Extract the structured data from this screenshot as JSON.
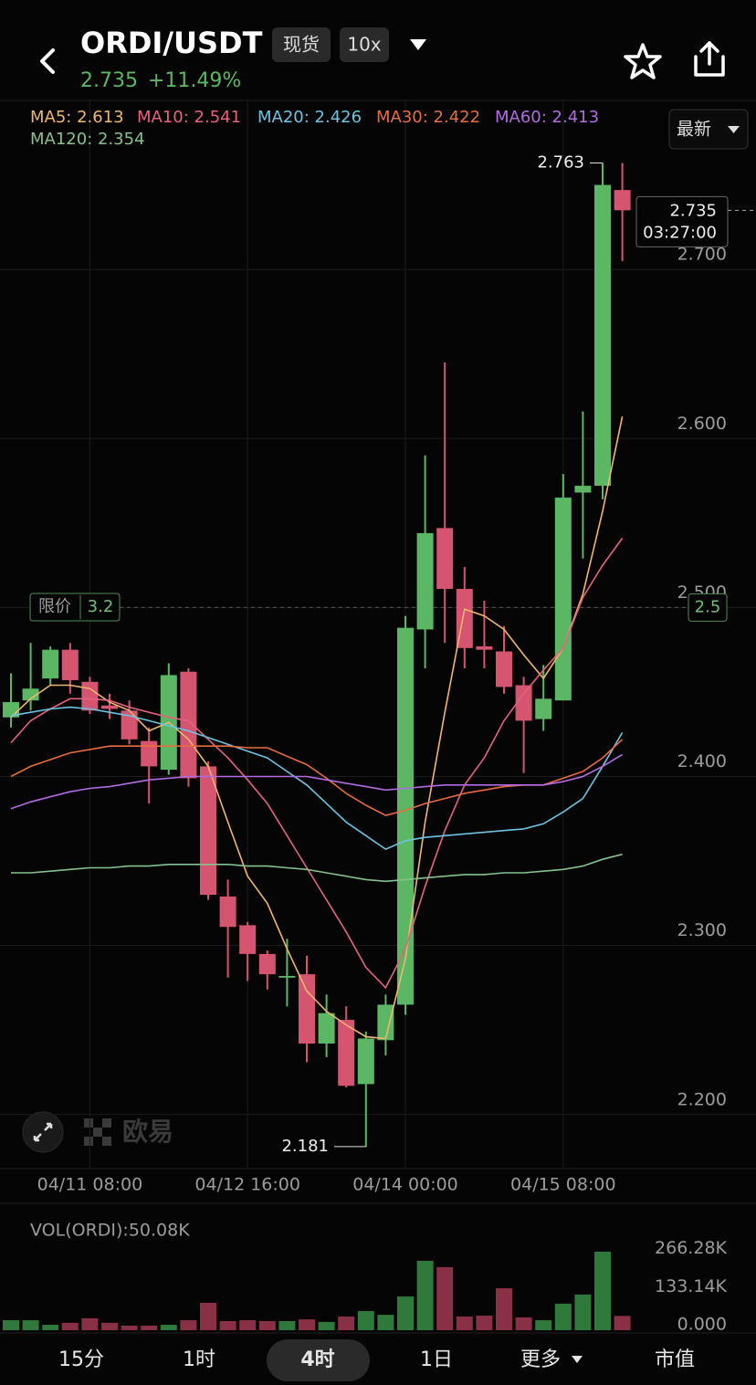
{
  "header": {
    "pair": "ORDI/USDT",
    "market": "现货",
    "leverage": "10x",
    "price": "2.735",
    "change": "+11.49%"
  },
  "price_mode": "最新",
  "watermark": "欧易",
  "chart_data": [
    {
      "type": "candlestick",
      "categories": [
        null,
        null,
        null,
        null,
        "04/11 08:00",
        null,
        null,
        null,
        null,
        null,
        null,
        null,
        "04/12 16:00",
        null,
        null,
        null,
        null,
        null,
        null,
        null,
        "04/14 00:00",
        null,
        null,
        null,
        null,
        null,
        null,
        null,
        "04/15 08:00",
        null,
        null,
        null
      ],
      "open": [
        2.435,
        2.445,
        2.458,
        2.475,
        2.456,
        2.442,
        2.439,
        2.421,
        2.404,
        2.462,
        2.406,
        2.329,
        2.312,
        2.295,
        2.281,
        2.283,
        2.242,
        2.256,
        2.218,
        2.244,
        2.265,
        2.487,
        2.547,
        2.511,
        2.477,
        2.474,
        2.454,
        2.434,
        2.445,
        2.568,
        2.572,
        2.747
      ],
      "high": [
        2.461,
        2.479,
        2.477,
        2.479,
        2.459,
        2.449,
        2.445,
        2.429,
        2.467,
        2.464,
        2.409,
        2.339,
        2.314,
        2.297,
        2.304,
        2.294,
        2.271,
        2.264,
        2.249,
        2.271,
        2.495,
        2.59,
        2.645,
        2.524,
        2.504,
        2.489,
        2.459,
        2.466,
        2.579,
        2.616,
        2.763,
        2.763
      ],
      "low": [
        2.429,
        2.439,
        2.454,
        2.449,
        2.437,
        2.434,
        2.419,
        2.384,
        2.401,
        2.394,
        2.327,
        2.281,
        2.279,
        2.274,
        2.264,
        2.231,
        2.234,
        2.216,
        2.181,
        2.235,
        2.259,
        2.464,
        2.479,
        2.464,
        2.464,
        2.449,
        2.402,
        2.427,
        2.445,
        2.529,
        2.564,
        2.705
      ],
      "close": [
        2.444,
        2.452,
        2.475,
        2.457,
        2.439,
        2.44,
        2.422,
        2.406,
        2.46,
        2.399,
        2.33,
        2.311,
        2.295,
        2.283,
        2.282,
        2.242,
        2.26,
        2.217,
        2.245,
        2.265,
        2.488,
        2.544,
        2.511,
        2.476,
        2.475,
        2.453,
        2.433,
        2.446,
        2.565,
        2.572,
        2.75,
        2.735
      ],
      "up_color": "#5bb763",
      "down_color": "#d5546f",
      "ylim": [
        2.168,
        2.8
      ],
      "yticks": [
        {
          "value": 2.2,
          "label": "2.200"
        },
        {
          "value": 2.3,
          "label": "2.300"
        },
        {
          "value": 2.4,
          "label": "2.400"
        },
        {
          "value": 2.5,
          "label": "2.500"
        },
        {
          "value": 2.6,
          "label": "2.600"
        },
        {
          "value": 2.7,
          "label": "2.700"
        }
      ],
      "grid": true,
      "series": [
        {
          "name": "MA5: 2.613",
          "color": "#f0b56e",
          "values": [
            2.435,
            2.446,
            2.454,
            2.454,
            2.452,
            2.444,
            2.439,
            2.427,
            2.432,
            2.422,
            2.406,
            2.373,
            2.341,
            2.325,
            2.298,
            2.273,
            2.261,
            2.253,
            2.246,
            2.245,
            2.292,
            2.373,
            2.438,
            2.499,
            2.495,
            2.487,
            2.472,
            2.458,
            2.476,
            2.508,
            2.557,
            2.613
          ]
        },
        {
          "name": "MA10: 2.541",
          "color": "#e5627f",
          "values": [
            2.42,
            2.433,
            2.44,
            2.446,
            2.446,
            2.445,
            2.441,
            2.438,
            2.435,
            2.433,
            2.422,
            2.411,
            2.398,
            2.384,
            2.365,
            2.346,
            2.327,
            2.308,
            2.287,
            2.275,
            2.298,
            2.335,
            2.368,
            2.395,
            2.411,
            2.433,
            2.449,
            2.463,
            2.476,
            2.506,
            2.525,
            2.541
          ]
        },
        {
          "name": "MA20: 2.426",
          "color": "#6cc3e2",
          "values": [
            2.436,
            2.438,
            2.44,
            2.441,
            2.44,
            2.438,
            2.436,
            2.433,
            2.43,
            2.427,
            2.423,
            2.419,
            2.415,
            2.411,
            2.403,
            2.395,
            2.384,
            2.373,
            2.365,
            2.357,
            2.362,
            2.364,
            2.365,
            2.366,
            2.367,
            2.368,
            2.369,
            2.372,
            2.379,
            2.387,
            2.406,
            2.426
          ]
        },
        {
          "name": "MA30: 2.422",
          "color": "#e86c3f",
          "values": [
            2.4,
            2.406,
            2.41,
            2.414,
            2.416,
            2.418,
            2.418,
            2.418,
            2.418,
            2.418,
            2.418,
            2.418,
            2.417,
            2.417,
            2.412,
            2.407,
            2.399,
            2.39,
            2.383,
            2.377,
            2.38,
            2.384,
            2.387,
            2.39,
            2.392,
            2.394,
            2.395,
            2.395,
            2.399,
            2.403,
            2.411,
            2.422
          ]
        },
        {
          "name": "MA60: 2.413",
          "color": "#b26be0",
          "values": [
            2.381,
            2.385,
            2.388,
            2.391,
            2.393,
            2.394,
            2.396,
            2.398,
            2.399,
            2.4,
            2.4,
            2.4,
            2.4,
            2.4,
            2.4,
            2.4,
            2.398,
            2.396,
            2.394,
            2.392,
            2.393,
            2.394,
            2.395,
            2.395,
            2.395,
            2.395,
            2.395,
            2.395,
            2.397,
            2.4,
            2.406,
            2.413
          ]
        },
        {
          "name": "MA120: 2.354",
          "color": "#86c18b",
          "values": [
            2.343,
            2.343,
            2.344,
            2.345,
            2.346,
            2.346,
            2.347,
            2.347,
            2.348,
            2.348,
            2.348,
            2.348,
            2.347,
            2.347,
            2.346,
            2.345,
            2.343,
            2.341,
            2.339,
            2.338,
            2.339,
            2.34,
            2.341,
            2.342,
            2.342,
            2.343,
            2.343,
            2.344,
            2.345,
            2.347,
            2.351,
            2.354
          ]
        }
      ],
      "annotations": {
        "high": "2.763",
        "low": "2.181"
      },
      "last_price": {
        "price": "2.735",
        "countdown": "03:27:00"
      },
      "limit_order": {
        "label": "限价",
        "value": "3.2",
        "axis_value": 2.5
      }
    },
    {
      "type": "bar",
      "title": "VOL(ORDI):50.08K",
      "values": [
        35000,
        35000,
        19000,
        26000,
        42000,
        26000,
        16000,
        16000,
        19000,
        35000,
        96000,
        32000,
        35000,
        32000,
        32000,
        38000,
        29000,
        48000,
        67000,
        54000,
        118000,
        243000,
        221000,
        48000,
        51000,
        147000,
        45000,
        35000,
        93000,
        125000,
        275000,
        50080
      ],
      "up_color": "#2f7a3b",
      "down_color": "#8a3046",
      "ylim": [
        0,
        390000
      ],
      "yticks": [
        {
          "value": 0,
          "label": "0.000"
        },
        {
          "value": 133140,
          "label": "133.14K"
        },
        {
          "value": 266280,
          "label": "266.28K"
        }
      ]
    }
  ],
  "tabs": [
    "15分",
    "1时",
    "4时",
    "1日",
    "更多",
    "市值"
  ]
}
